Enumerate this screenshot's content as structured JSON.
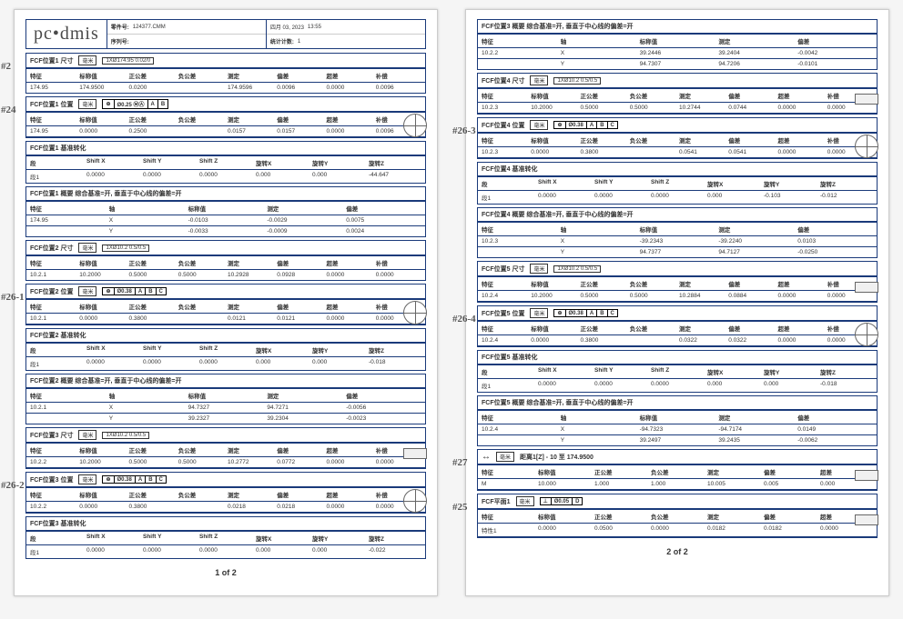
{
  "logo": "pc•dmis",
  "header": {
    "part_no_label": "零件号:",
    "part_no": "124377.CMM",
    "date": "四月 03, 2023",
    "time": "13:55",
    "serial_label": "序列号:",
    "stat_label": "统计计数:",
    "stat": "1"
  },
  "hand_labels": {
    "p1": [
      "#2",
      "#24",
      "#26-1",
      "#26-2"
    ],
    "p2": [
      "#26-3",
      "#26-4",
      "#27",
      "#25"
    ]
  },
  "col_headers": {
    "meas": [
      "特征",
      "标称值",
      "正公差",
      "负公差",
      "测定",
      "偏差",
      "超差",
      "补偿"
    ],
    "meas_short": [
      "特征",
      "标称值",
      "正公差",
      "负公差",
      "测定",
      "偏差",
      "超差"
    ],
    "axis": [
      "特征",
      "轴",
      "标称值",
      "测定",
      "偏差"
    ],
    "shift": [
      "段",
      "Shift X",
      "Shift Y",
      "Shift Z",
      "旋转X",
      "旋转Y",
      "旋转Z"
    ]
  },
  "unit_tag": "毫米",
  "p1_sections": [
    {
      "title": "FCF位置1 尺寸",
      "tag": "1XØ174.95 0.02/0",
      "rows": [
        [
          "174.95",
          "174.9500",
          "0.0200",
          "",
          "174.9596",
          "0.0096",
          "0.0000",
          "0.0096"
        ]
      ]
    },
    {
      "title": "FCF位置1 位置",
      "gdt": [
        "⊕",
        "Ø0.25 ⓂⒶ",
        "A",
        "B"
      ],
      "rows": [
        [
          "174.95",
          "0.0000",
          "0.2500",
          "",
          "0.0157",
          "0.0157",
          "0.0000",
          "0.0096"
        ]
      ],
      "target": true
    },
    {
      "title": "FCF位置1 基准转化",
      "shift_rows": [
        [
          "段1",
          "0.0000",
          "0.0000",
          "0.0000",
          "0.000",
          "0.000",
          "-44.647"
        ]
      ]
    },
    {
      "title": "FCF位置1 概要 综合基准=开, 垂直于中心线的偏差=开",
      "axis_rows": [
        [
          "174.95",
          "X",
          "-0.0103",
          "-0.0029",
          "0.0075"
        ],
        [
          "",
          "Y",
          "-0.0033",
          "-0.0009",
          "0.0024"
        ]
      ]
    },
    {
      "title": "FCF位置2 尺寸",
      "tag": "1XØ10.2 0.5/0.5",
      "rows": [
        [
          "10.2.1",
          "10.2000",
          "0.5000",
          "0.5000",
          "10.2928",
          "0.0928",
          "0.0000",
          "0.0000"
        ]
      ]
    },
    {
      "title": "FCF位置2 位置",
      "gdt": [
        "⊕",
        "Ø0.38",
        "A",
        "B",
        "C"
      ],
      "rows": [
        [
          "10.2.1",
          "0.0000",
          "0.3800",
          "",
          "0.0121",
          "0.0121",
          "0.0000",
          "0.0000"
        ]
      ],
      "target": true
    },
    {
      "title": "FCF位置2 基准转化",
      "shift_rows": [
        [
          "段1",
          "0.0000",
          "0.0000",
          "0.0000",
          "0.000",
          "0.000",
          "-0.018"
        ]
      ]
    },
    {
      "title": "FCF位置2 概要 综合基准=开, 垂直于中心线的偏差=开",
      "axis_rows": [
        [
          "10.2.1",
          "X",
          "94.7327",
          "94.7271",
          "-0.0056"
        ],
        [
          "",
          "Y",
          "39.2327",
          "39.2304",
          "-0.0023"
        ]
      ]
    },
    {
      "title": "FCF位置3 尺寸",
      "tag": "1XØ10.2 0.5/0.5",
      "rows": [
        [
          "10.2.2",
          "10.2000",
          "0.5000",
          "0.5000",
          "10.2772",
          "0.0772",
          "0.0000",
          "0.0000"
        ]
      ],
      "pbox": true
    },
    {
      "title": "FCF位置3 位置",
      "gdt": [
        "⊕",
        "Ø0.38",
        "A",
        "B",
        "C"
      ],
      "rows": [
        [
          "10.2.2",
          "0.0000",
          "0.3800",
          "",
          "0.0218",
          "0.0218",
          "0.0000",
          "0.0000"
        ]
      ],
      "target": true
    },
    {
      "title": "FCF位置3 基准转化",
      "shift_rows": [
        [
          "段1",
          "0.0000",
          "0.0000",
          "0.0000",
          "0.000",
          "0.000",
          "-0.022"
        ]
      ]
    }
  ],
  "p2_sections": [
    {
      "title": "FCF位置3 概要 综合基准=开, 垂直于中心线的偏差=开",
      "axis_rows": [
        [
          "10.2.2",
          "X",
          "39.2446",
          "39.2404",
          "-0.0042"
        ],
        [
          "",
          "Y",
          "94.7307",
          "94.7206",
          "-0.0101"
        ]
      ]
    },
    {
      "title": "FCF位置4 尺寸",
      "tag": "1XØ10.2 0.5/0.5",
      "rows": [
        [
          "10.2.3",
          "10.2000",
          "0.5000",
          "0.5000",
          "10.2744",
          "0.0744",
          "0.0000",
          "0.0000"
        ]
      ],
      "pbox": true
    },
    {
      "title": "FCF位置4 位置",
      "gdt": [
        "⊕",
        "Ø0.38",
        "A",
        "B",
        "C"
      ],
      "rows": [
        [
          "10.2.3",
          "0.0000",
          "0.3800",
          "",
          "0.0541",
          "0.0541",
          "0.0000",
          "0.0000"
        ]
      ],
      "target": true
    },
    {
      "title": "FCF位置4 基准转化",
      "shift_rows": [
        [
          "段1",
          "0.0000",
          "0.0000",
          "0.0000",
          "0.000",
          "-0.103",
          "-0.012"
        ]
      ]
    },
    {
      "title": "FCF位置4 概要 综合基准=开, 垂直于中心线的偏差=开",
      "axis_rows": [
        [
          "10.2.3",
          "X",
          "-39.2343",
          "-39.2240",
          "0.0103"
        ],
        [
          "",
          "Y",
          "94.7377",
          "94.7127",
          "-0.0250"
        ]
      ]
    },
    {
      "title": "FCF位置5 尺寸",
      "tag": "1XØ10.2 0.5/0.5",
      "rows": [
        [
          "10.2.4",
          "10.2000",
          "0.5000",
          "0.5000",
          "10.2884",
          "0.0884",
          "0.0000",
          "0.0000"
        ]
      ],
      "pbox": true
    },
    {
      "title": "FCF位置5 位置",
      "gdt": [
        "⊕",
        "Ø0.38",
        "A",
        "B",
        "C"
      ],
      "rows": [
        [
          "10.2.4",
          "0.0000",
          "0.3800",
          "",
          "0.0322",
          "0.0322",
          "0.0000",
          "0.0000"
        ]
      ],
      "target": true
    },
    {
      "title": "FCF位置5 基准转化",
      "shift_rows": [
        [
          "段1",
          "0.0000",
          "0.0000",
          "0.0000",
          "0.000",
          "0.000",
          "-0.018"
        ]
      ]
    },
    {
      "title": "FCF位置5 概要 综合基准=开, 垂直于中心线的偏差=开",
      "axis_rows": [
        [
          "10.2.4",
          "X",
          "-94.7323",
          "-94.7174",
          "0.0149"
        ],
        [
          "",
          "Y",
          "39.2497",
          "39.2435",
          "-0.0062"
        ]
      ]
    },
    {
      "title_plain": "距离1[Z] - 10 至 174.9500",
      "rows_short": [
        [
          "M",
          "10.000",
          "1.000",
          "1.000",
          "10.005",
          "0.005",
          "0.000"
        ]
      ],
      "pbox": true
    },
    {
      "title": "FCF平面1",
      "gdt": [
        "⊥",
        "Ø0.05",
        "D"
      ],
      "rows_short": [
        [
          "特性1",
          "0.0000",
          "0.0500",
          "0.0000",
          "0.0182",
          "0.0182",
          "0.0000"
        ]
      ],
      "pbox": true
    }
  ],
  "footer": {
    "p1": "1  of  2",
    "p2": "2  of  2"
  }
}
